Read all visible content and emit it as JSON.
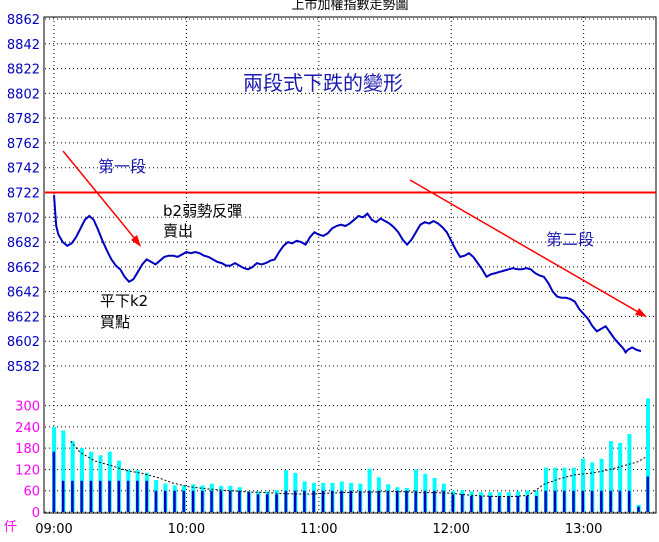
{
  "chart_data": {
    "type": "line",
    "title": "上市加權指數走勢圖",
    "price_axis": {
      "ylim": [
        8582,
        8862
      ],
      "ticks": [
        "8862",
        "8842",
        "8822",
        "8802",
        "8782",
        "8762",
        "8742",
        "8722",
        "8702",
        "8682",
        "8662",
        "8642",
        "8622",
        "8602",
        "8582"
      ],
      "color": "#0000c0"
    },
    "volume_axis": {
      "ylim": [
        0,
        330
      ],
      "ticks": [
        "300",
        "240",
        "180",
        "120",
        "60",
        "0"
      ],
      "unit_label": "仟",
      "color": "#ff00ff"
    },
    "time_axis": {
      "ticks": [
        "09:00",
        "10:00",
        "11:00",
        "12:00",
        "13:00"
      ],
      "tick_minutes": [
        0,
        60,
        120,
        180,
        240
      ],
      "range_minutes": [
        0,
        270
      ]
    },
    "reference_line": {
      "value": 8722,
      "color": "#ff0000"
    },
    "price_series": {
      "color": "#0000c0",
      "points": [
        [
          0,
          8720
        ],
        [
          1,
          8695
        ],
        [
          2,
          8688
        ],
        [
          4,
          8682
        ],
        [
          6,
          8679
        ],
        [
          8,
          8681
        ],
        [
          10,
          8686
        ],
        [
          12,
          8693
        ],
        [
          14,
          8700
        ],
        [
          16,
          8703
        ],
        [
          18,
          8700
        ],
        [
          20,
          8692
        ],
        [
          22,
          8683
        ],
        [
          24,
          8675
        ],
        [
          26,
          8668
        ],
        [
          28,
          8663
        ],
        [
          30,
          8660
        ],
        [
          32,
          8654
        ],
        [
          34,
          8650
        ],
        [
          36,
          8652
        ],
        [
          38,
          8658
        ],
        [
          40,
          8664
        ],
        [
          42,
          8668
        ],
        [
          44,
          8666
        ],
        [
          46,
          8664
        ],
        [
          48,
          8667
        ],
        [
          50,
          8670
        ],
        [
          52,
          8671
        ],
        [
          54,
          8671
        ],
        [
          56,
          8670
        ],
        [
          58,
          8672
        ],
        [
          60,
          8674
        ],
        [
          62,
          8673
        ],
        [
          64,
          8674
        ],
        [
          66,
          8673
        ],
        [
          68,
          8671
        ],
        [
          70,
          8670
        ],
        [
          72,
          8668
        ],
        [
          74,
          8666
        ],
        [
          76,
          8665
        ],
        [
          78,
          8663
        ],
        [
          80,
          8663
        ],
        [
          82,
          8665
        ],
        [
          84,
          8663
        ],
        [
          86,
          8661
        ],
        [
          88,
          8660
        ],
        [
          90,
          8662
        ],
        [
          92,
          8665
        ],
        [
          94,
          8664
        ],
        [
          96,
          8665
        ],
        [
          98,
          8667
        ],
        [
          100,
          8668
        ],
        [
          102,
          8674
        ],
        [
          104,
          8679
        ],
        [
          106,
          8682
        ],
        [
          108,
          8681
        ],
        [
          110,
          8683
        ],
        [
          112,
          8682
        ],
        [
          114,
          8680
        ],
        [
          116,
          8686
        ],
        [
          118,
          8690
        ],
        [
          120,
          8688
        ],
        [
          122,
          8687
        ],
        [
          124,
          8689
        ],
        [
          126,
          8693
        ],
        [
          128,
          8695
        ],
        [
          130,
          8696
        ],
        [
          132,
          8695
        ],
        [
          134,
          8697
        ],
        [
          136,
          8700
        ],
        [
          138,
          8703
        ],
        [
          140,
          8702
        ],
        [
          142,
          8705
        ],
        [
          144,
          8700
        ],
        [
          146,
          8698
        ],
        [
          148,
          8701
        ],
        [
          150,
          8699
        ],
        [
          152,
          8697
        ],
        [
          154,
          8694
        ],
        [
          156,
          8690
        ],
        [
          158,
          8684
        ],
        [
          160,
          8680
        ],
        [
          162,
          8684
        ],
        [
          164,
          8690
        ],
        [
          166,
          8696
        ],
        [
          168,
          8698
        ],
        [
          170,
          8697
        ],
        [
          172,
          8699
        ],
        [
          174,
          8697
        ],
        [
          176,
          8694
        ],
        [
          178,
          8690
        ],
        [
          180,
          8683
        ],
        [
          182,
          8676
        ],
        [
          184,
          8670
        ],
        [
          186,
          8671
        ],
        [
          188,
          8673
        ],
        [
          190,
          8670
        ],
        [
          192,
          8665
        ],
        [
          194,
          8660
        ],
        [
          196,
          8654
        ],
        [
          198,
          8656
        ],
        [
          200,
          8657
        ],
        [
          202,
          8658
        ],
        [
          204,
          8659
        ],
        [
          206,
          8660
        ],
        [
          208,
          8661
        ],
        [
          210,
          8660
        ],
        [
          212,
          8660
        ],
        [
          214,
          8661
        ],
        [
          216,
          8660
        ],
        [
          218,
          8657
        ],
        [
          220,
          8655
        ],
        [
          222,
          8654
        ],
        [
          224,
          8649
        ],
        [
          226,
          8642
        ],
        [
          228,
          8638
        ],
        [
          230,
          8637
        ],
        [
          232,
          8637
        ],
        [
          234,
          8636
        ],
        [
          236,
          8634
        ],
        [
          238,
          8628
        ],
        [
          240,
          8624
        ],
        [
          242,
          8620
        ],
        [
          244,
          8614
        ],
        [
          246,
          8610
        ],
        [
          248,
          8612
        ],
        [
          250,
          8614
        ],
        [
          252,
          8609
        ],
        [
          254,
          8604
        ],
        [
          256,
          8600
        ],
        [
          258,
          8596
        ],
        [
          259,
          8593
        ],
        [
          260,
          8595
        ],
        [
          262,
          8597
        ],
        [
          264,
          8595
        ],
        [
          266,
          8594
        ]
      ]
    },
    "volume_series": {
      "primary_color": "#00ffff",
      "secondary_color": "#0000c0",
      "bars": [
        [
          2,
          240,
          170
        ],
        [
          8,
          230,
          88
        ],
        [
          14,
          200,
          88
        ],
        [
          20,
          180,
          88
        ],
        [
          26,
          170,
          88
        ],
        [
          32,
          160,
          88
        ],
        [
          38,
          170,
          88
        ],
        [
          44,
          145,
          88
        ],
        [
          50,
          120,
          88
        ],
        [
          56,
          118,
          88
        ],
        [
          62,
          110,
          88
        ],
        [
          68,
          90,
          60
        ],
        [
          74,
          80,
          60
        ],
        [
          80,
          75,
          60
        ],
        [
          86,
          75,
          60
        ],
        [
          92,
          78,
          60
        ],
        [
          98,
          75,
          60
        ],
        [
          104,
          80,
          60
        ],
        [
          110,
          74,
          60
        ],
        [
          116,
          74,
          60
        ],
        [
          122,
          70,
          60
        ],
        [
          128,
          58,
          55
        ],
        [
          134,
          58,
          50
        ],
        [
          140,
          58,
          50
        ],
        [
          146,
          62,
          50
        ],
        [
          152,
          118,
          60
        ],
        [
          158,
          110,
          60
        ],
        [
          164,
          86,
          60
        ],
        [
          170,
          82,
          60
        ],
        [
          176,
          82,
          60
        ],
        [
          182,
          82,
          60
        ],
        [
          188,
          86,
          60
        ],
        [
          194,
          82,
          60
        ],
        [
          200,
          80,
          60
        ],
        [
          206,
          122,
          60
        ],
        [
          212,
          98,
          60
        ],
        [
          218,
          78,
          60
        ],
        [
          224,
          70,
          60
        ],
        [
          230,
          68,
          60
        ],
        [
          236,
          120,
          60
        ],
        [
          242,
          108,
          60
        ],
        [
          248,
          96,
          60
        ],
        [
          254,
          80,
          60
        ],
        [
          260,
          60,
          50
        ],
        [
          266,
          62,
          50
        ],
        [
          272,
          58,
          45
        ],
        [
          278,
          56,
          45
        ],
        [
          284,
          56,
          45
        ],
        [
          290,
          56,
          45
        ],
        [
          296,
          56,
          45
        ],
        [
          302,
          58,
          45
        ],
        [
          308,
          60,
          45
        ],
        [
          314,
          60,
          45
        ],
        [
          320,
          125,
          60
        ],
        [
          326,
          125,
          60
        ],
        [
          332,
          125,
          60
        ],
        [
          338,
          125,
          60
        ],
        [
          344,
          150,
          60
        ],
        [
          350,
          140,
          60
        ],
        [
          356,
          150,
          60
        ],
        [
          362,
          200,
          60
        ],
        [
          368,
          195,
          60
        ],
        [
          374,
          220,
          60
        ],
        [
          380,
          20,
          15
        ],
        [
          386,
          320,
          100
        ]
      ],
      "average": [
        [
          14,
          256
        ],
        [
          20,
          216
        ],
        [
          30,
          184
        ],
        [
          40,
          168
        ],
        [
          50,
          150
        ],
        [
          60,
          140
        ],
        [
          70,
          125
        ],
        [
          80,
          105
        ],
        [
          90,
          92
        ],
        [
          100,
          85
        ],
        [
          110,
          80
        ],
        [
          120,
          76
        ],
        [
          130,
          72
        ],
        [
          140,
          70
        ],
        [
          150,
          67
        ],
        [
          160,
          65
        ],
        [
          170,
          65
        ],
        [
          180,
          68
        ],
        [
          190,
          70
        ],
        [
          200,
          72
        ],
        [
          210,
          72
        ],
        [
          220,
          74
        ],
        [
          230,
          73
        ],
        [
          240,
          70
        ],
        [
          250,
          70
        ],
        [
          260,
          68
        ],
        [
          270,
          62
        ],
        [
          280,
          58
        ],
        [
          290,
          56
        ],
        [
          300,
          56
        ],
        [
          310,
          60
        ],
        [
          320,
          100
        ],
        [
          330,
          120
        ],
        [
          340,
          135
        ],
        [
          350,
          140
        ],
        [
          360,
          150
        ],
        [
          370,
          165
        ],
        [
          380,
          180
        ],
        [
          386,
          198
        ]
      ]
    },
    "annotations": [
      {
        "text": "兩段式下跌的變形",
        "x": 0,
        "y": 0,
        "size": 20,
        "color": "#1a1ab0"
      },
      {
        "text": "第一段",
        "size": 16,
        "color": "#1a1ab0"
      },
      {
        "text": "b2弱勢反彈",
        "size": 15,
        "color": "#000000"
      },
      {
        "text": "賣出",
        "size": 15,
        "color": "#000000"
      },
      {
        "text": "平下k2",
        "size": 15,
        "color": "#000000"
      },
      {
        "text": "買點",
        "size": 15,
        "color": "#000000"
      },
      {
        "text": "第二段",
        "size": 16,
        "color": "#1a1ab0"
      }
    ],
    "arrows": {
      "color": "#ff0000"
    }
  }
}
